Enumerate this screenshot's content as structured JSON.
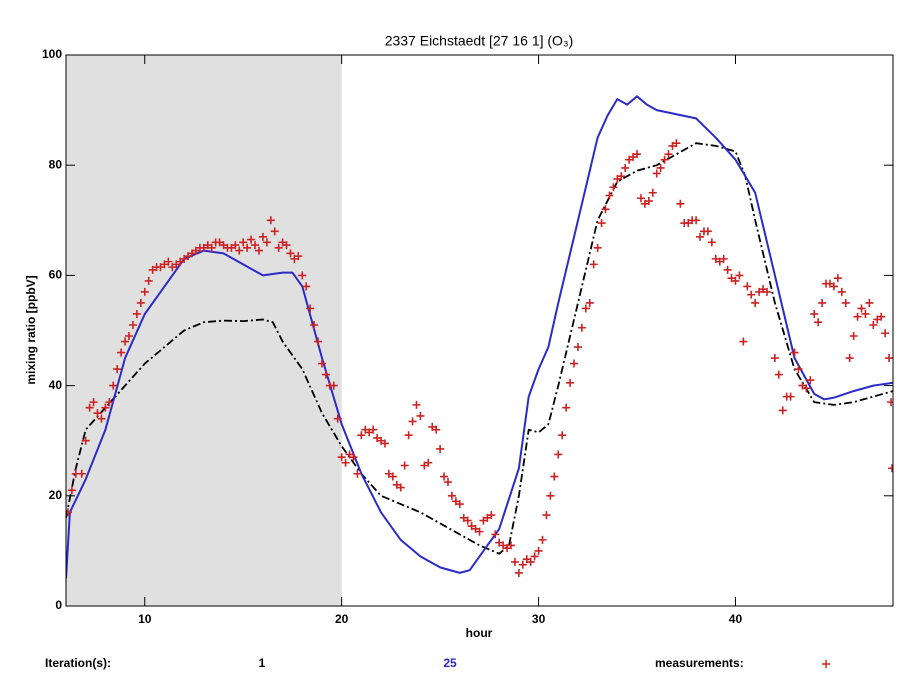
{
  "chart_data": {
    "type": "line",
    "title": "2337 Eichstaedt  [27 16 1]  (O₃)",
    "x_label": "hour",
    "y_label": "mixing ratio [ppbV]",
    "xlim": [
      6,
      48
    ],
    "ylim": [
      0,
      100
    ],
    "xticks": [
      10,
      20,
      30,
      40
    ],
    "yticks": [
      0,
      20,
      40,
      60,
      80,
      100
    ],
    "shade_xlim": [
      6,
      20
    ],
    "shade_color": "#e0e0e0",
    "legend_title": "Iteration(s):",
    "series": [
      {
        "name": "1",
        "color": "#000000",
        "mark": "dashdot",
        "x": [
          6,
          6.5,
          7,
          8,
          9,
          10,
          11,
          12,
          13,
          14,
          15,
          16,
          16.5,
          17,
          18,
          19,
          20,
          21,
          22,
          23,
          24,
          25,
          26,
          27,
          28,
          28.5,
          29,
          29.5,
          30,
          30.5,
          31,
          32,
          33,
          34,
          35,
          36,
          37,
          38,
          39,
          40,
          40.5,
          41,
          42,
          43,
          44,
          45,
          46,
          47,
          48
        ],
        "values": [
          16,
          25,
          32,
          36,
          40,
          44,
          47,
          50,
          51.5,
          51.8,
          51.7,
          52,
          51.5,
          48,
          43,
          35,
          29,
          24,
          20,
          18.5,
          17,
          15,
          13,
          11,
          9.5,
          11,
          20,
          32,
          31.5,
          33,
          40,
          55,
          70,
          77,
          79,
          80,
          82,
          84,
          83.5,
          82.5,
          78,
          70,
          55,
          43,
          37,
          36.5,
          37,
          38,
          39
        ]
      },
      {
        "name": "25",
        "color": "#2b2bc8",
        "mark": "line",
        "x": [
          6,
          6.2,
          7,
          8,
          9,
          10,
          11,
          12,
          13,
          14,
          15,
          16,
          17,
          17.5,
          18,
          19,
          20,
          21,
          22,
          23,
          24,
          25,
          26,
          26.5,
          27,
          28,
          29,
          29.5,
          30,
          30.5,
          31,
          32,
          33,
          33.5,
          34,
          34.5,
          35,
          35.5,
          36,
          38,
          39,
          40,
          41,
          42,
          43,
          44,
          44.5,
          45,
          46,
          47,
          48
        ],
        "values": [
          5,
          17,
          23,
          32,
          45,
          53,
          58,
          63,
          64.5,
          64,
          62,
          60,
          60.5,
          60.5,
          58,
          45,
          33,
          24,
          17,
          12,
          9,
          7,
          6,
          6.5,
          9,
          14,
          25,
          38,
          43,
          47,
          55,
          70,
          85,
          89,
          92,
          91,
          92.5,
          91,
          90,
          88.5,
          85,
          81,
          75,
          60,
          45,
          38.5,
          37.5,
          37.8,
          39,
          40,
          40.5
        ]
      },
      {
        "name": "measurements:",
        "color": "#cc2222",
        "mark": "plus",
        "x": [
          6.1,
          6.3,
          6.5,
          6.8,
          7.0,
          7.2,
          7.4,
          7.6,
          7.8,
          8.0,
          8.2,
          8.4,
          8.6,
          8.8,
          9.0,
          9.2,
          9.4,
          9.6,
          9.8,
          10.0,
          10.2,
          10.4,
          10.6,
          10.8,
          11.0,
          11.2,
          11.4,
          11.6,
          11.8,
          12.0,
          12.2,
          12.4,
          12.6,
          12.8,
          13.0,
          13.2,
          13.4,
          13.6,
          13.8,
          14.0,
          14.2,
          14.4,
          14.6,
          14.8,
          15.0,
          15.2,
          15.4,
          15.6,
          15.8,
          16.0,
          16.2,
          16.4,
          16.6,
          16.8,
          17.0,
          17.2,
          17.4,
          17.6,
          17.8,
          18.0,
          18.2,
          18.4,
          18.6,
          18.8,
          19.0,
          19.2,
          19.4,
          19.6,
          19.8,
          20.0,
          20.2,
          20.4,
          20.6,
          20.8,
          21.0,
          21.2,
          21.4,
          21.6,
          21.8,
          22.0,
          22.2,
          22.4,
          22.6,
          22.8,
          23.0,
          23.2,
          23.4,
          23.6,
          23.8,
          24.0,
          24.2,
          24.4,
          24.6,
          24.8,
          25.0,
          25.2,
          25.4,
          25.6,
          25.8,
          26.0,
          26.2,
          26.4,
          26.6,
          26.8,
          27.0,
          27.2,
          27.4,
          27.6,
          27.8,
          28.0,
          28.2,
          28.4,
          28.6,
          28.8,
          29.0,
          29.2,
          29.4,
          29.6,
          29.8,
          30.0,
          30.2,
          30.4,
          30.6,
          30.8,
          31.0,
          31.2,
          31.4,
          31.6,
          31.8,
          32.0,
          32.2,
          32.4,
          32.6,
          32.8,
          33.0,
          33.2,
          33.4,
          33.6,
          33.8,
          34.0,
          34.2,
          34.4,
          34.6,
          34.8,
          35.0,
          35.2,
          35.4,
          35.6,
          35.8,
          36.0,
          36.2,
          36.4,
          36.6,
          36.8,
          37.0,
          37.2,
          37.4,
          37.6,
          37.8,
          38.0,
          38.2,
          38.4,
          38.6,
          38.8,
          39.0,
          39.2,
          39.4,
          39.6,
          39.8,
          40.0,
          40.2,
          40.4,
          40.6,
          40.8,
          41.0,
          41.2,
          41.4,
          41.6,
          42.0,
          42.2,
          42.4,
          42.6,
          42.8,
          43.0,
          43.2,
          43.4,
          43.6,
          43.8,
          44.0,
          44.2,
          44.4,
          44.6,
          44.8,
          45.0,
          45.2,
          45.4,
          45.6,
          45.8,
          46.0,
          46.2,
          46.4,
          46.6,
          46.8,
          47.0,
          47.2,
          47.4,
          47.6,
          47.8,
          47.9,
          47.95
        ],
        "values": [
          17,
          21,
          24,
          24,
          30,
          36,
          37,
          35,
          34,
          36,
          37,
          40,
          43,
          46,
          48,
          49,
          51,
          53,
          55,
          57,
          59,
          61,
          61.5,
          61.5,
          62,
          62.5,
          61.5,
          62,
          62.5,
          63,
          63.5,
          64,
          64.5,
          65,
          65,
          65.5,
          65,
          66,
          66,
          65.5,
          65,
          65,
          65.5,
          64.5,
          66,
          65,
          66.5,
          65.5,
          64.5,
          67,
          66,
          70,
          68,
          65,
          66,
          65.5,
          64,
          63,
          63.5,
          60,
          58,
          54,
          51,
          48,
          44,
          42,
          40,
          40,
          34,
          27,
          26,
          27.5,
          27,
          24,
          31,
          32,
          31.5,
          32,
          30.5,
          30,
          29.5,
          24,
          23.5,
          22,
          21.5,
          25.5,
          31,
          33.5,
          36.5,
          34.5,
          25.5,
          26,
          32.5,
          32,
          28.5,
          23.5,
          22.5,
          20,
          19,
          18.5,
          16,
          15.5,
          14.5,
          14,
          13.5,
          15.5,
          16,
          16.5,
          13,
          11.5,
          11,
          10.5,
          11,
          8,
          6,
          7.5,
          8.5,
          8,
          9,
          10,
          12,
          16.5,
          20,
          23.5,
          27.5,
          31,
          36,
          40.5,
          44,
          47,
          50.5,
          54,
          55,
          62,
          65,
          69.5,
          72,
          74.5,
          76,
          77.5,
          78,
          79.5,
          81,
          81.5,
          82,
          74,
          73,
          73.5,
          75,
          78.5,
          79.5,
          81,
          82,
          83.5,
          84,
          73,
          69.5,
          69.5,
          70,
          70,
          67,
          68,
          68,
          66,
          63,
          62.5,
          63,
          61,
          59.5,
          59,
          60,
          48,
          58,
          56.5,
          55,
          57,
          57.5,
          57,
          45,
          42,
          35.5,
          38,
          38,
          46,
          43,
          40,
          39.5,
          41,
          53,
          51.5,
          55,
          58.5,
          58.5,
          58,
          59.5,
          57,
          55,
          45,
          49,
          52.5,
          54,
          53,
          55,
          51,
          52,
          52.5,
          49.5,
          45,
          37,
          25
        ]
      }
    ]
  }
}
